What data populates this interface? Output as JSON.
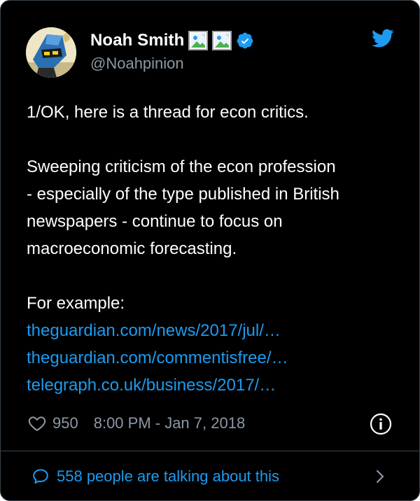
{
  "author": {
    "display_name": "Noah Smith",
    "handle": "@Noahpinion",
    "verified": true,
    "name_emoji_images": [
      "broken-image-icon",
      "broken-image-icon"
    ]
  },
  "tweet": {
    "paragraph_1": "1/OK, here is a thread for econ critics.",
    "paragraph_2_lines": [
      "Sweeping criticism of the econ profession",
      "- especially of the type published in British",
      "newspapers - continue to focus on",
      "macroeconomic forecasting."
    ],
    "paragraph_3": "For example:",
    "links": [
      "theguardian.com/news/2017/jul/…",
      "theguardian.com/commentisfree/…",
      "telegraph.co.uk/business/2017/…"
    ]
  },
  "meta": {
    "likes": "950",
    "timestamp": "8:00 PM - Jan 7, 2018"
  },
  "footer": {
    "talking_label": "558 people are talking about this"
  },
  "colors": {
    "background": "#000000",
    "text": "#ffffff",
    "muted": "#8b98a5",
    "accent": "#1d9bf0",
    "border": "#38444d"
  },
  "icons": {
    "brand": "twitter-bird-icon",
    "verified": "verified-badge-icon",
    "like": "heart-icon",
    "info": "info-icon",
    "reply": "speech-bubble-icon",
    "more": "chevron-right-icon"
  }
}
